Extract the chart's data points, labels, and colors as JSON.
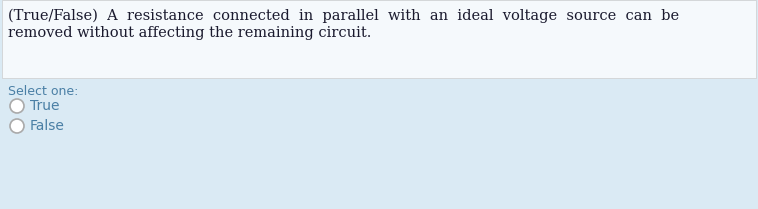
{
  "background_color": "#daeaf4",
  "question_box_color": "#f5f9fc",
  "question_text_line1": "(True/False)  A  resistance  connected  in  parallel  with  an  ideal  voltage  source  can  be",
  "question_text_line2": "removed without affecting the remaining circuit.",
  "select_label": "Select one:",
  "options": [
    "True",
    "False"
  ],
  "text_color": "#1a1a2e",
  "select_color": "#4a7fa5",
  "option_color": "#4a7fa5",
  "question_fontsize": 10.5,
  "select_fontsize": 9.0,
  "option_fontsize": 10.0,
  "circle_facecolor": "#ffffff",
  "circle_edge_color": "#aaaaaa",
  "fig_width": 7.58,
  "fig_height": 2.09,
  "dpi": 100
}
